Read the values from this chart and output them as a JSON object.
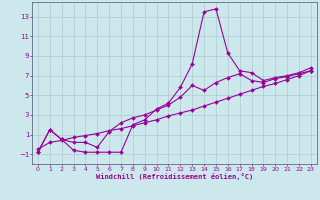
{
  "xlabel": "Windchill (Refroidissement éolien,°C)",
  "bg_color": "#cce8ec",
  "grid_color": "#aacccc",
  "line_color": "#990099",
  "spine_color": "#666688",
  "xlim": [
    -0.5,
    23.5
  ],
  "ylim": [
    -2.0,
    14.5
  ],
  "xticks": [
    0,
    1,
    2,
    3,
    4,
    5,
    6,
    7,
    8,
    9,
    10,
    11,
    12,
    13,
    14,
    15,
    16,
    17,
    18,
    19,
    20,
    21,
    22,
    23
  ],
  "yticks": [
    -1,
    1,
    3,
    5,
    7,
    9,
    11,
    13
  ],
  "line1_x": [
    0,
    1,
    2,
    3,
    4,
    5,
    6,
    7,
    8,
    9,
    10,
    11,
    12,
    13,
    14,
    15,
    16,
    17,
    18,
    19,
    20,
    21,
    22,
    23
  ],
  "line1_y": [
    -0.8,
    1.5,
    0.5,
    -0.6,
    -0.8,
    -0.8,
    -0.8,
    -0.8,
    2.0,
    2.5,
    3.6,
    4.2,
    5.8,
    8.2,
    13.5,
    13.8,
    9.3,
    7.5,
    7.3,
    6.5,
    6.8,
    7.0,
    7.3,
    7.8
  ],
  "line2_x": [
    0,
    1,
    2,
    3,
    4,
    5,
    6,
    7,
    8,
    9,
    10,
    11,
    12,
    13,
    14,
    15,
    16,
    17,
    18,
    19,
    20,
    21,
    22,
    23
  ],
  "line2_y": [
    -0.8,
    1.5,
    0.5,
    0.2,
    0.2,
    -0.3,
    1.3,
    2.2,
    2.7,
    3.0,
    3.5,
    4.0,
    4.8,
    6.0,
    5.5,
    6.3,
    6.8,
    7.2,
    6.5,
    6.3,
    6.7,
    6.9,
    7.2,
    7.5
  ],
  "line3_x": [
    0,
    1,
    2,
    3,
    4,
    5,
    6,
    7,
    8,
    9,
    10,
    11,
    12,
    13,
    14,
    15,
    16,
    17,
    18,
    19,
    20,
    21,
    22,
    23
  ],
  "line3_y": [
    -0.5,
    0.2,
    0.4,
    0.7,
    0.9,
    1.1,
    1.4,
    1.6,
    1.9,
    2.2,
    2.5,
    2.9,
    3.2,
    3.5,
    3.9,
    4.3,
    4.7,
    5.1,
    5.5,
    5.9,
    6.2,
    6.6,
    7.0,
    7.5
  ]
}
